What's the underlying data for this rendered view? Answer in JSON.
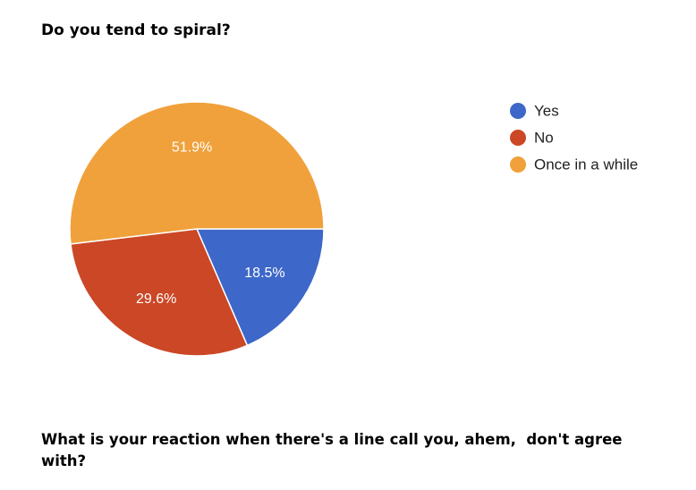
{
  "chart_data": {
    "type": "pie",
    "title": "Do you tend to spiral?",
    "categories": [
      "Yes",
      "No",
      "Once in a while"
    ],
    "values": [
      18.5,
      29.6,
      51.9
    ],
    "value_labels": [
      "18.5%",
      "29.6%",
      "51.9%"
    ],
    "colors": [
      "#3d67c9",
      "#cb4726",
      "#f0a13b"
    ],
    "legend": "right"
  },
  "next_question": "What is your reaction when there's a line call you, ahem,  don't agree with?"
}
